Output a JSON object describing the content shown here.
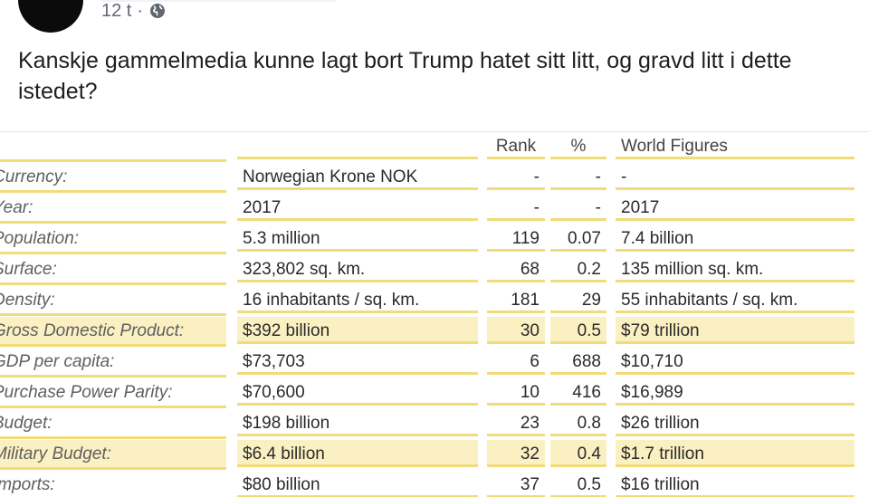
{
  "post": {
    "time": "12 t",
    "separator": "·",
    "text": "Kanskje gammelmedia kunne lagt bort Trump hatet sitt litt, og gravd litt i dette istedet?"
  },
  "icons": {
    "audience": "globe-icon"
  },
  "colors": {
    "row_line": "#f1dc7a",
    "highlight": "#fbf0c2"
  },
  "table": {
    "headers": {
      "label": "",
      "value": "",
      "rank": "Rank",
      "percent": "%",
      "world": "World Figures"
    },
    "rows": [
      {
        "label": "Currency:",
        "value": "Norwegian Krone NOK",
        "rank": "-",
        "percent": "-",
        "world": "-",
        "highlight": false
      },
      {
        "label": "Year:",
        "value": "2017",
        "rank": "-",
        "percent": "-",
        "world": "2017",
        "highlight": false
      },
      {
        "label": "Population:",
        "value": "5.3 million",
        "rank": "119",
        "percent": "0.07",
        "world": "7.4 billion",
        "highlight": false
      },
      {
        "label": "Surface:",
        "value": "323,802 sq. km.",
        "rank": "68",
        "percent": "0.2",
        "world": "135 million sq. km.",
        "highlight": false
      },
      {
        "label": "Density:",
        "value": "16 inhabitants / sq. km.",
        "rank": "181",
        "percent": "29",
        "world": "55 inhabitants / sq. km.",
        "highlight": false
      },
      {
        "label": "Gross Domestic Product:",
        "value": "$392 billion",
        "rank": "30",
        "percent": "0.5",
        "world": "$79 trillion",
        "highlight": true
      },
      {
        "label": "GDP per capita:",
        "value": "$73,703",
        "rank": "6",
        "percent": "688",
        "world": "$10,710",
        "highlight": false
      },
      {
        "label": "Purchase Power Parity:",
        "value": "$70,600",
        "rank": "10",
        "percent": "416",
        "world": "$16,989",
        "highlight": false
      },
      {
        "label": "Budget:",
        "value": "$198 billion",
        "rank": "23",
        "percent": "0.8",
        "world": "$26 trillion",
        "highlight": false
      },
      {
        "label": "Military Budget:",
        "value": "$6.4 billion",
        "rank": "32",
        "percent": "0.4",
        "world": "$1.7 trillion",
        "highlight": true
      },
      {
        "label": "Imports:",
        "value": "$80 billion",
        "rank": "37",
        "percent": "0.5",
        "world": "$16 trillion",
        "highlight": false
      }
    ]
  }
}
